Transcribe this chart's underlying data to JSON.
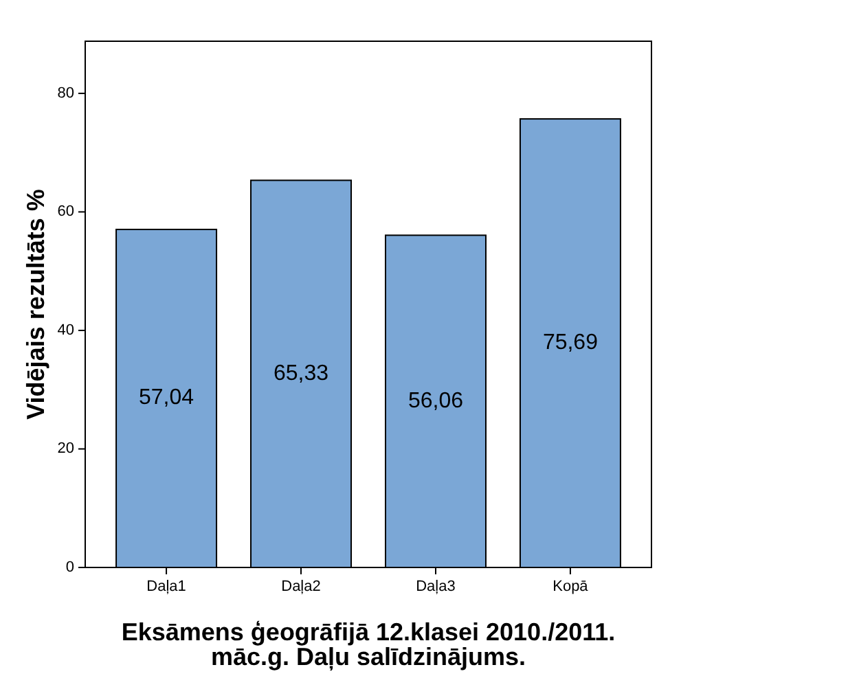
{
  "chart_data": {
    "type": "bar",
    "title": "Eksāmens ģeogrāfijā 12.klasei 2010./2011. māc.g. Daļu salīdzinājums.",
    "ylabel": "Vidējais rezultāts %",
    "categories": [
      "Daļa1",
      "Daļa2",
      "Daļa3",
      "Kopā"
    ],
    "values": [
      57.04,
      65.33,
      56.06,
      75.69
    ],
    "value_labels": [
      "57,04",
      "65,33",
      "56,06",
      "75,69"
    ],
    "color": "#7ba7d6",
    "ylim": [
      0,
      88.8
    ],
    "yticks": [
      0,
      20,
      40,
      60,
      80
    ],
    "grid": false
  }
}
